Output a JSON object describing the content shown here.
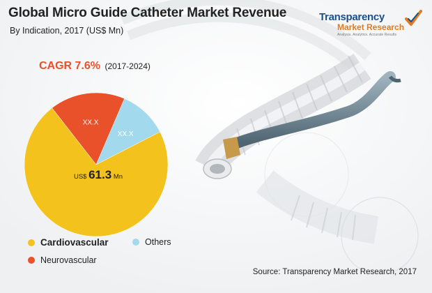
{
  "header": {
    "title": "Global Micro Guide Catheter Market Revenue",
    "subtitle": "By Indication, 2017 (US$ Mn)"
  },
  "cagr": {
    "label": "CAGR 7.6%",
    "period": "(2017-2024)",
    "color": "#e8512a"
  },
  "logo": {
    "line1": "Transparency",
    "line2": "Market Research",
    "line3": "Analysis. Analytics. Accurate Results"
  },
  "source": "Source: Transparency Market Research, 2017",
  "chart_data": {
    "type": "pie",
    "title": "Global Micro Guide Catheter Market Revenue",
    "subtitle": "By Indication, 2017 (US$ Mn)",
    "legend_position": "bottom-left",
    "slices": [
      {
        "name": "Cardiovascular",
        "value": 61.3,
        "share": 0.72,
        "color": "#f3c21c",
        "label_prefix": "US$",
        "label_value": "61.3",
        "label_suffix": "Mn"
      },
      {
        "name": "Neurovascular",
        "share": 0.17,
        "color": "#e8512a",
        "label_value": "XX.X"
      },
      {
        "name": "Others",
        "share": 0.11,
        "color": "#a3d9ec",
        "label_value": "XX.X"
      }
    ]
  }
}
